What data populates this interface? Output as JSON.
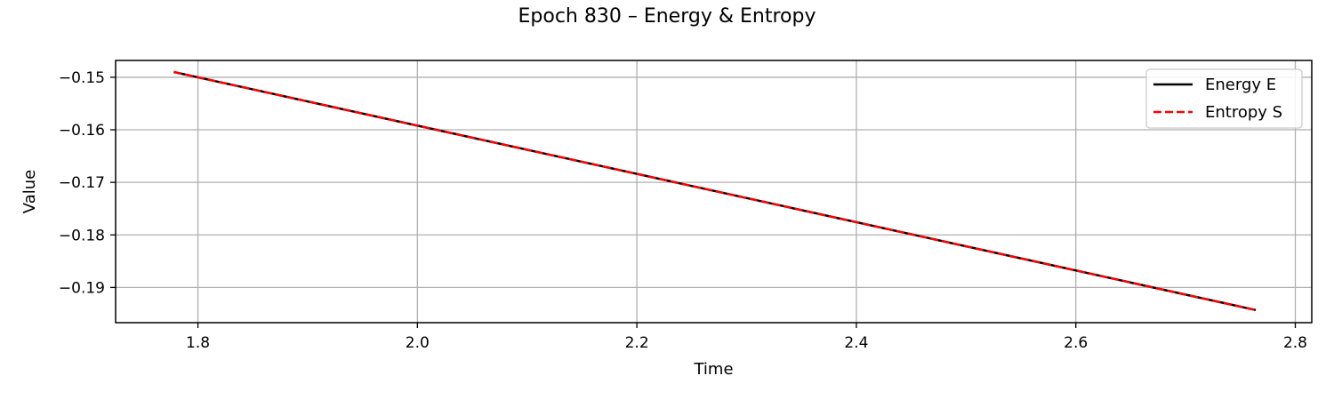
{
  "chart_data": {
    "type": "line",
    "title": "Epoch 830 – Energy & Entropy",
    "xlabel": "Time",
    "ylabel": "Value",
    "xlim": [
      1.725,
      2.815
    ],
    "ylim": [
      -0.1967,
      -0.1468
    ],
    "xticks": [
      1.8,
      2.0,
      2.2,
      2.4,
      2.6,
      2.8
    ],
    "xtick_labels": [
      "1.8",
      "2.0",
      "2.2",
      "2.4",
      "2.6",
      "2.8"
    ],
    "yticks": [
      -0.15,
      -0.16,
      -0.17,
      -0.18,
      -0.19
    ],
    "ytick_labels": [
      "−0.15",
      "−0.16",
      "−0.17",
      "−0.18",
      "−0.19"
    ],
    "grid": true,
    "legend_position": "top-right",
    "series": [
      {
        "name": "Energy E",
        "color": "#000000",
        "style": "solid",
        "x": [
          1.778,
          2.764
        ],
        "y": [
          -0.149,
          -0.1943
        ]
      },
      {
        "name": "Entropy S",
        "color": "#ff0000",
        "style": "dashed",
        "x": [
          1.778,
          2.764
        ],
        "y": [
          -0.149,
          -0.1943
        ]
      }
    ]
  }
}
